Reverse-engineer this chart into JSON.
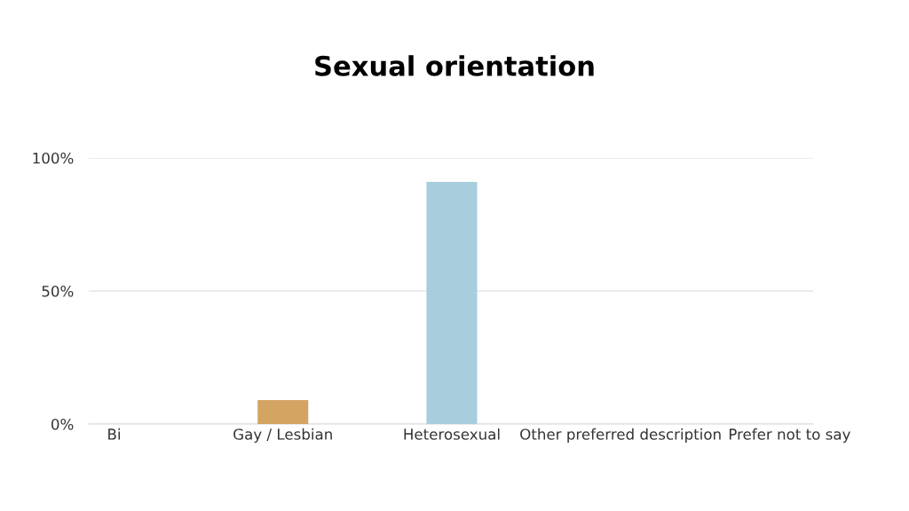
{
  "chart_data": {
    "type": "bar",
    "title": "Sexual orientation",
    "categories": [
      "Bi",
      "Gay / Lesbian",
      "Heterosexual",
      "Other preferred description",
      "Prefer not to say"
    ],
    "values": [
      0,
      9,
      91,
      0,
      0
    ],
    "colors": [
      "#d4a463",
      "#d4a463",
      "#a8cedd",
      "#a8cedd",
      "#a8cedd"
    ],
    "ylim": [
      0,
      100
    ],
    "yticks": [
      {
        "value": 0,
        "label": "0%"
      },
      {
        "value": 50,
        "label": "50%"
      },
      {
        "value": 100,
        "label": "100%"
      }
    ],
    "grid": "y",
    "legend": false
  }
}
